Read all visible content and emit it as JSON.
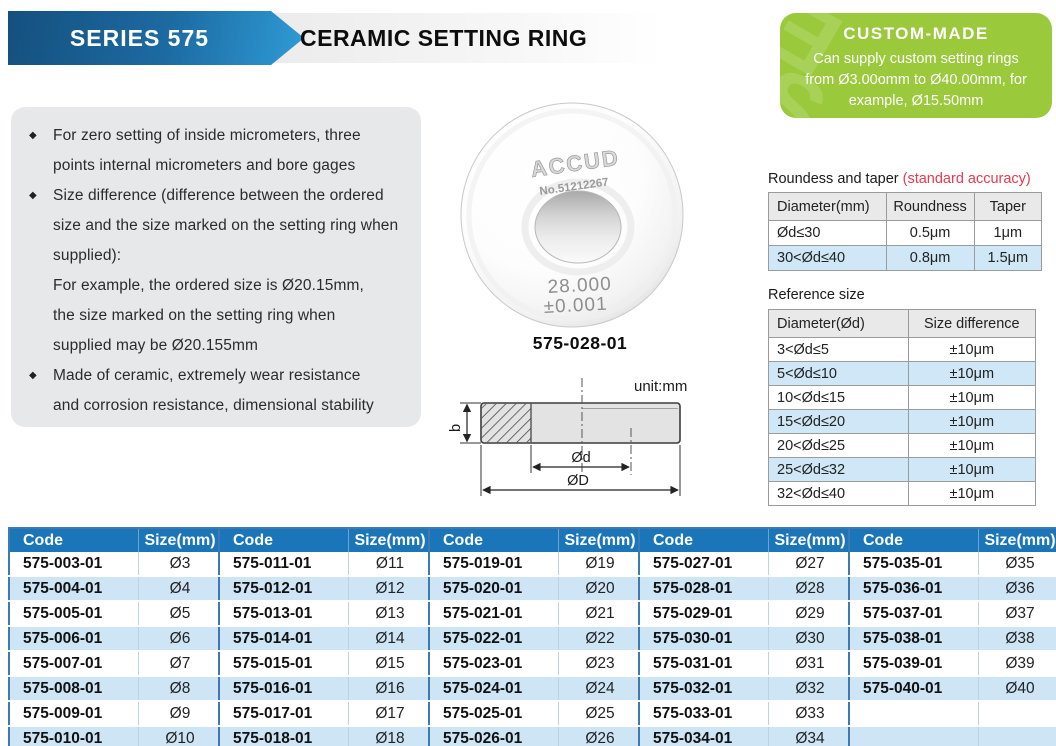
{
  "header": {
    "series": "SERIES 575",
    "title": "CERAMIC SETTING RING"
  },
  "custom_made": {
    "title": "CUSTOM-MADE",
    "lines": [
      "Can supply custom setting rings",
      "from Ø3.00omm to Ø40.00mm, for",
      "example, Ø15.50mm"
    ]
  },
  "features": {
    "items": [
      {
        "lines": [
          "For zero setting of inside micrometers, three",
          "points internal micrometers and bore gages"
        ]
      },
      {
        "lines": [
          "Size difference (difference between the ordered",
          "size and the size marked on the setting ring when",
          "supplied):",
          "For example, the ordered size is Ø20.15mm,",
          "the size marked on the setting ring when",
          "supplied may be Ø20.155mm"
        ]
      },
      {
        "lines": [
          "Made of ceramic, extremely wear resistance",
          "and corrosion resistance, dimensional stability"
        ]
      }
    ]
  },
  "product": {
    "brand": "ACCUD",
    "serial": "No.51212267",
    "marking_size": "28.000",
    "marking_tolerance": "±0.001",
    "code": "575-028-01"
  },
  "drawing": {
    "unit": "unit:mm",
    "dim_b": "b",
    "dim_d": "Ød",
    "dim_D": "ØD"
  },
  "accuracy_table": {
    "title": "Roundess and taper ",
    "title_accent": "(standard accuracy)",
    "head": [
      "Diameter(mm)",
      "Roundness",
      "Taper"
    ],
    "rows": [
      [
        "Ød≤30",
        "0.5μm",
        "1μm"
      ],
      [
        "30<Ød≤40",
        "0.8μm",
        "1.5μm"
      ]
    ]
  },
  "reference_table": {
    "title": "Reference size",
    "head": [
      "Diameter(Ød)",
      "Size difference"
    ],
    "rows": [
      [
        "3<Ød≤5",
        "±10μm"
      ],
      [
        "5<Ød≤10",
        "±10μm"
      ],
      [
        "10<Ød≤15",
        "±10μm"
      ],
      [
        "15<Ød≤20",
        "±10μm"
      ],
      [
        "20<Ød≤25",
        "±10μm"
      ],
      [
        "25<Ød≤32",
        "±10μm"
      ],
      [
        "32<Ød≤40",
        "±10μm"
      ]
    ]
  },
  "size_tables": [
    {
      "head": [
        "Code",
        "Size(mm)"
      ],
      "rows": [
        [
          "575-003-01",
          "Ø3"
        ],
        [
          "575-004-01",
          "Ø4"
        ],
        [
          "575-005-01",
          "Ø5"
        ],
        [
          "575-006-01",
          "Ø6"
        ],
        [
          "575-007-01",
          "Ø7"
        ],
        [
          "575-008-01",
          "Ø8"
        ],
        [
          "575-009-01",
          "Ø9"
        ],
        [
          "575-010-01",
          "Ø10"
        ]
      ]
    },
    {
      "head": [
        "Code",
        "Size(mm)"
      ],
      "rows": [
        [
          "575-011-01",
          "Ø11"
        ],
        [
          "575-012-01",
          "Ø12"
        ],
        [
          "575-013-01",
          "Ø13"
        ],
        [
          "575-014-01",
          "Ø14"
        ],
        [
          "575-015-01",
          "Ø15"
        ],
        [
          "575-016-01",
          "Ø16"
        ],
        [
          "575-017-01",
          "Ø17"
        ],
        [
          "575-018-01",
          "Ø18"
        ]
      ]
    },
    {
      "head": [
        "Code",
        "Size(mm)"
      ],
      "rows": [
        [
          "575-019-01",
          "Ø19"
        ],
        [
          "575-020-01",
          "Ø20"
        ],
        [
          "575-021-01",
          "Ø21"
        ],
        [
          "575-022-01",
          "Ø22"
        ],
        [
          "575-023-01",
          "Ø23"
        ],
        [
          "575-024-01",
          "Ø24"
        ],
        [
          "575-025-01",
          "Ø25"
        ],
        [
          "575-026-01",
          "Ø26"
        ]
      ]
    },
    {
      "head": [
        "Code",
        "Size(mm)"
      ],
      "rows": [
        [
          "575-027-01",
          "Ø27"
        ],
        [
          "575-028-01",
          "Ø28"
        ],
        [
          "575-029-01",
          "Ø29"
        ],
        [
          "575-030-01",
          "Ø30"
        ],
        [
          "575-031-01",
          "Ø31"
        ],
        [
          "575-032-01",
          "Ø32"
        ],
        [
          "575-033-01",
          "Ø33"
        ],
        [
          "575-034-01",
          "Ø34"
        ]
      ]
    },
    {
      "head": [
        "Code",
        "Size(mm)"
      ],
      "rows": [
        [
          "575-035-01",
          "Ø35"
        ],
        [
          "575-036-01",
          "Ø36"
        ],
        [
          "575-037-01",
          "Ø37"
        ],
        [
          "575-038-01",
          "Ø38"
        ],
        [
          "575-039-01",
          "Ø39"
        ],
        [
          "575-040-01",
          "Ø40"
        ],
        [
          "",
          ""
        ],
        [
          "",
          ""
        ]
      ]
    }
  ],
  "colors": {
    "banner_blue_dark": "#14507e",
    "banner_blue_light": "#2f9bd5",
    "table_header_blue": "#1b76b9",
    "row_light_blue": "#cde5f5",
    "green_box": "#9aca3c",
    "accent_red": "#e8394e"
  }
}
